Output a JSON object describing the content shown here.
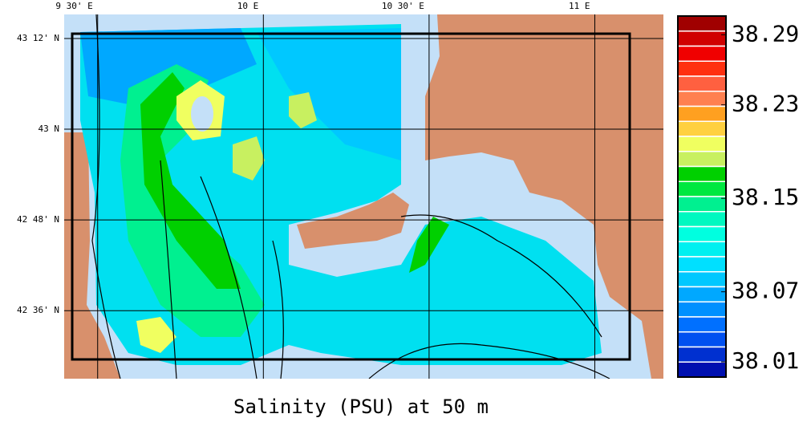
{
  "chart_data": {
    "type": "map",
    "title": "Salinity (PSU) at 50 m",
    "xlim": [
      9.399,
      11.207
    ],
    "ylim": [
      42.45,
      43.253
    ],
    "xticks": [
      {
        "value": 9.5,
        "label": "9 30' E"
      },
      {
        "value": 10,
        "label": "10 E"
      },
      {
        "value": 10.5,
        "label": "10 30' E"
      },
      {
        "value": 11,
        "label": "11 E"
      }
    ],
    "yticks": [
      {
        "value": 43.2,
        "label": "43 12' N"
      },
      {
        "value": 43,
        "label": "43 N"
      },
      {
        "value": 42.8,
        "label": "42 48' N"
      },
      {
        "value": 42.6,
        "label": "42 36' N"
      }
    ],
    "colorbar": {
      "clim": [
        37.997,
        38.306
      ],
      "ticks": [
        38.29,
        38.23,
        38.15,
        38.07,
        38.01
      ],
      "colors": [
        "#a00000",
        "#d00000",
        "#f00000",
        "#ff3010",
        "#ff6040",
        "#ff8050",
        "#ffa020",
        "#ffd040",
        "#f0ff60",
        "#c8f060",
        "#00d000",
        "#00e840",
        "#00f090",
        "#00f8c0",
        "#00ffe0",
        "#00f0f0",
        "#00e0ff",
        "#00c8ff",
        "#00a8ff",
        "#0090ff",
        "#0070ff",
        "#0050f0",
        "#0030d0",
        "#0010b0"
      ]
    }
  }
}
